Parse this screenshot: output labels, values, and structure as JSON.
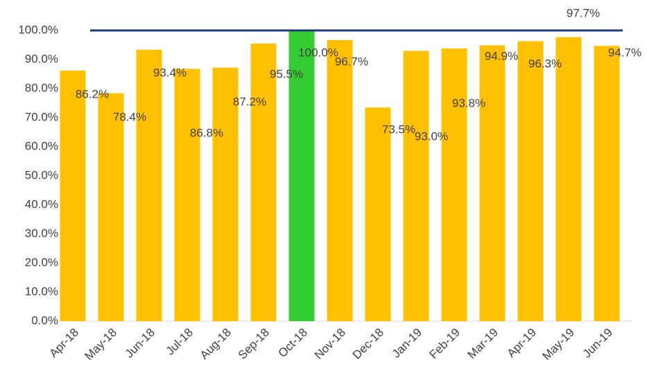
{
  "chart_data": {
    "type": "bar",
    "categories": [
      "Apr-18",
      "May-18",
      "Jun-18",
      "Jul-18",
      "Aug-18",
      "Sep-18",
      "Oct-18",
      "Nov-18",
      "Dec-18",
      "Jan-19",
      "Feb-19",
      "Mar-19",
      "Apr-19",
      "May-19",
      "Jun-19"
    ],
    "values": [
      86.2,
      78.4,
      93.4,
      86.8,
      87.2,
      95.5,
      100.0,
      96.7,
      73.5,
      93.0,
      93.8,
      94.9,
      96.3,
      97.7,
      94.7
    ],
    "value_labels": [
      "86.2%",
      "78.4%",
      "93.4%",
      "86.8%",
      "87.2%",
      "95.5%",
      "100.0%",
      "96.7%",
      "73.5%",
      "93.0%",
      "93.8%",
      "94.9%",
      "96.3%",
      "97.7%",
      "94.7%"
    ],
    "colors": [
      "#ffc000",
      "#ffc000",
      "#ffc000",
      "#ffc000",
      "#ffc000",
      "#ffc000",
      "#33cc33",
      "#ffc000",
      "#ffc000",
      "#ffc000",
      "#ffc000",
      "#ffc000",
      "#ffc000",
      "#ffc000",
      "#ffc000"
    ],
    "reference_line": {
      "value": 100,
      "color": "#1f3a7a"
    },
    "ylim": [
      0,
      100
    ],
    "yticks": [
      {
        "value": 0,
        "label": "0.0%"
      },
      {
        "value": 10,
        "label": "10.0%"
      },
      {
        "value": 20,
        "label": "20.0%"
      },
      {
        "value": 30,
        "label": "30.0%"
      },
      {
        "value": 40,
        "label": "40.0%"
      },
      {
        "value": 50,
        "label": "50.0%"
      },
      {
        "value": 60,
        "label": "60.0%"
      },
      {
        "value": 70,
        "label": "70.0%"
      },
      {
        "value": 80,
        "label": "80.0%"
      },
      {
        "value": 90,
        "label": "90.0%"
      },
      {
        "value": 100,
        "label": "100.0%"
      }
    ],
    "grid": false
  }
}
